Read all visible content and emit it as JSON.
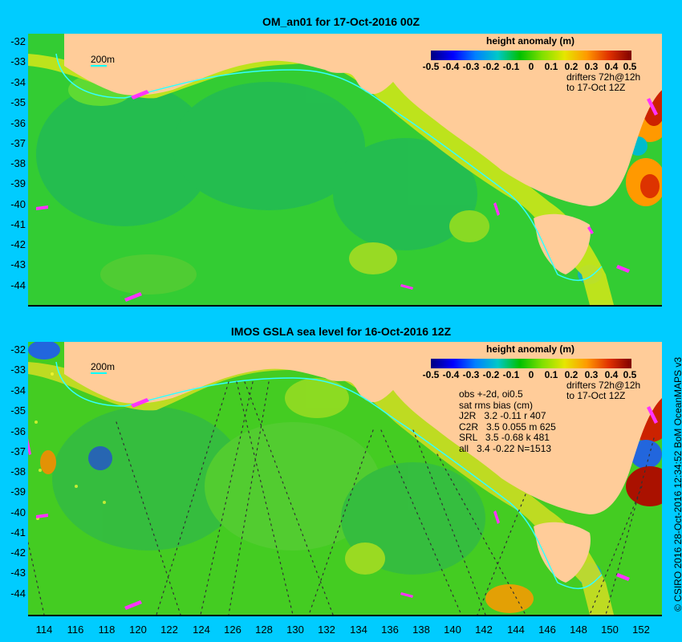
{
  "top_panel": {
    "title": "OM_an01 for 17-Oct-2016 00Z",
    "scale_label": "200m",
    "colorbar": {
      "title": "height anomaly (m)",
      "ticks": [
        "-0.5",
        "-0.4",
        "-0.3",
        "-0.2",
        "-0.1",
        "0",
        "0.1",
        "0.2",
        "0.3",
        "0.4",
        "0.5"
      ]
    },
    "drifters_line1": "drifters 72h@12h",
    "drifters_line2": "to 17-Oct 12Z"
  },
  "bottom_panel": {
    "title": "IMOS GSLA sea level  for 16-Oct-2016 12Z",
    "scale_label": "200m",
    "colorbar": {
      "title": "height anomaly (m)",
      "ticks": [
        "-0.5",
        "-0.4",
        "-0.3",
        "-0.2",
        "-0.1",
        "0",
        "0.1",
        "0.2",
        "0.3",
        "0.4",
        "0.5"
      ]
    },
    "drifters_line1": "drifters 72h@12h",
    "drifters_line2": "to 17-Oct 12Z",
    "stats": {
      "line1": "obs +-2d, oi0.5",
      "line2": "sat rms bias (cm)",
      "rows": [
        "J2R   3.2 -0.11 r 407",
        "C2R   3.5 0.055 m 625",
        "SRL   3.5 -0.68 k 481",
        "all   3.4 -0.22 N=1513"
      ]
    }
  },
  "y_axis_labels": [
    "-32",
    "-33",
    "-34",
    "-35",
    "-36",
    "-37",
    "-38",
    "-39",
    "-40",
    "-41",
    "-42",
    "-43",
    "-44"
  ],
  "x_axis_labels": [
    "114",
    "116",
    "118",
    "120",
    "122",
    "124",
    "126",
    "128",
    "130",
    "132",
    "134",
    "136",
    "138",
    "140",
    "142",
    "144",
    "146",
    "148",
    "150",
    "152"
  ],
  "copyright": "© CSIRO 2016  28-Oct-2016 12:34:52 BoM OceanMAPS v3",
  "colors": {
    "background": "#00ccff",
    "land": "#ffcc99",
    "ocean_base": "#33cc33",
    "drifter": "#ff33ff"
  }
}
